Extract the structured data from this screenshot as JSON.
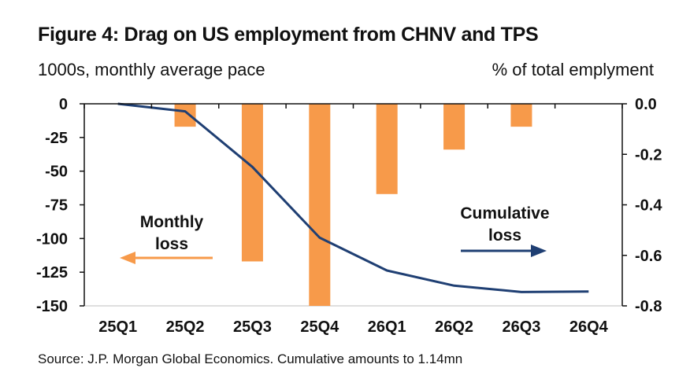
{
  "title": "Figure 4: Drag on US employment from CHNV and TPS",
  "left_axis_unit": "1000s, monthly average pace",
  "right_axis_unit": "% of total emplyment",
  "source": "Source: J.P. Morgan Global Economics. Cumulative amounts to 1.14mn",
  "colors": {
    "bar": "#F79A4A",
    "line": "#1F3F73",
    "axis": "#111111",
    "grid": "#BFBFBF"
  },
  "chart_data": {
    "type": "bar+line",
    "categories": [
      "25Q1",
      "25Q2",
      "25Q3",
      "25Q4",
      "26Q1",
      "26Q2",
      "26Q3",
      "26Q4"
    ],
    "series": [
      {
        "name": "Monthly loss",
        "axis": "left",
        "type": "bar",
        "values": [
          0,
          -17,
          -117,
          -150,
          -67,
          -34,
          -17,
          0
        ]
      },
      {
        "name": "Cumulative loss",
        "axis": "right",
        "type": "line",
        "values": [
          0.0,
          -0.03,
          -0.25,
          -0.53,
          -0.66,
          -0.72,
          -0.745,
          -0.743
        ]
      }
    ],
    "left_axis": {
      "ylim": [
        -150,
        0
      ],
      "ticks": [
        0,
        -25,
        -50,
        -75,
        -100,
        -125,
        -150
      ],
      "tick_labels": [
        "0",
        "-25",
        "-50",
        "-75",
        "-100",
        "-125",
        "-150"
      ]
    },
    "right_axis": {
      "ylim": [
        -0.8,
        0.0
      ],
      "ticks": [
        0.0,
        -0.2,
        -0.4,
        -0.6,
        -0.8
      ],
      "tick_labels": [
        "0.0",
        "-0.2",
        "-0.4",
        "-0.6",
        "-0.8"
      ]
    },
    "annotations": [
      {
        "lines": [
          "Monthly",
          "loss"
        ],
        "arrow": "left",
        "series": "Monthly loss"
      },
      {
        "lines": [
          "Cumulative",
          "loss"
        ],
        "arrow": "right",
        "series": "Cumulative loss"
      }
    ]
  }
}
